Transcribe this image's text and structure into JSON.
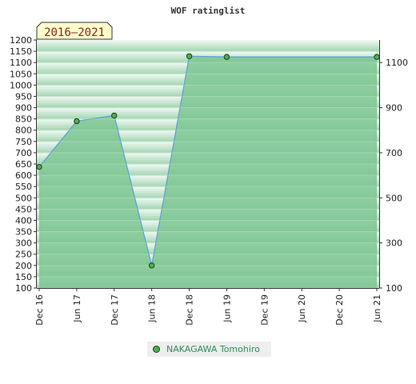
{
  "chart_data": {
    "type": "area",
    "title": "WOF ratinglist",
    "period_badge": "2016–2021",
    "x_ticks": [
      "Dec 16",
      "Jun 17",
      "Dec 17",
      "Jun 18",
      "Dec 18",
      "Jun 19",
      "Dec 19",
      "Jun 20",
      "Dec 20",
      "Jun 21"
    ],
    "y_left_ticks": [
      1200,
      1150,
      1100,
      1050,
      1000,
      950,
      900,
      850,
      800,
      750,
      700,
      650,
      600,
      550,
      500,
      450,
      400,
      350,
      300,
      250,
      200,
      150,
      100
    ],
    "y_right_ticks": [
      1100,
      900,
      700,
      500,
      300,
      100
    ],
    "ylim": [
      100,
      1200
    ],
    "series": [
      {
        "name": "NAKAGAWA Tomohiro",
        "x": [
          "Dec 16",
          "Jun 17",
          "Dec 17",
          "Jun 18",
          "Dec 18",
          "Jun 19",
          "Jun 21"
        ],
        "values": [
          637,
          840,
          865,
          200,
          1128,
          1125,
          1125
        ]
      }
    ],
    "colors": {
      "fill": "#7cc592",
      "line": "#5aa0d8",
      "marker": "#4caf50",
      "band_dark": "#acd9b8",
      "band_light": "#e9f6ee"
    }
  }
}
